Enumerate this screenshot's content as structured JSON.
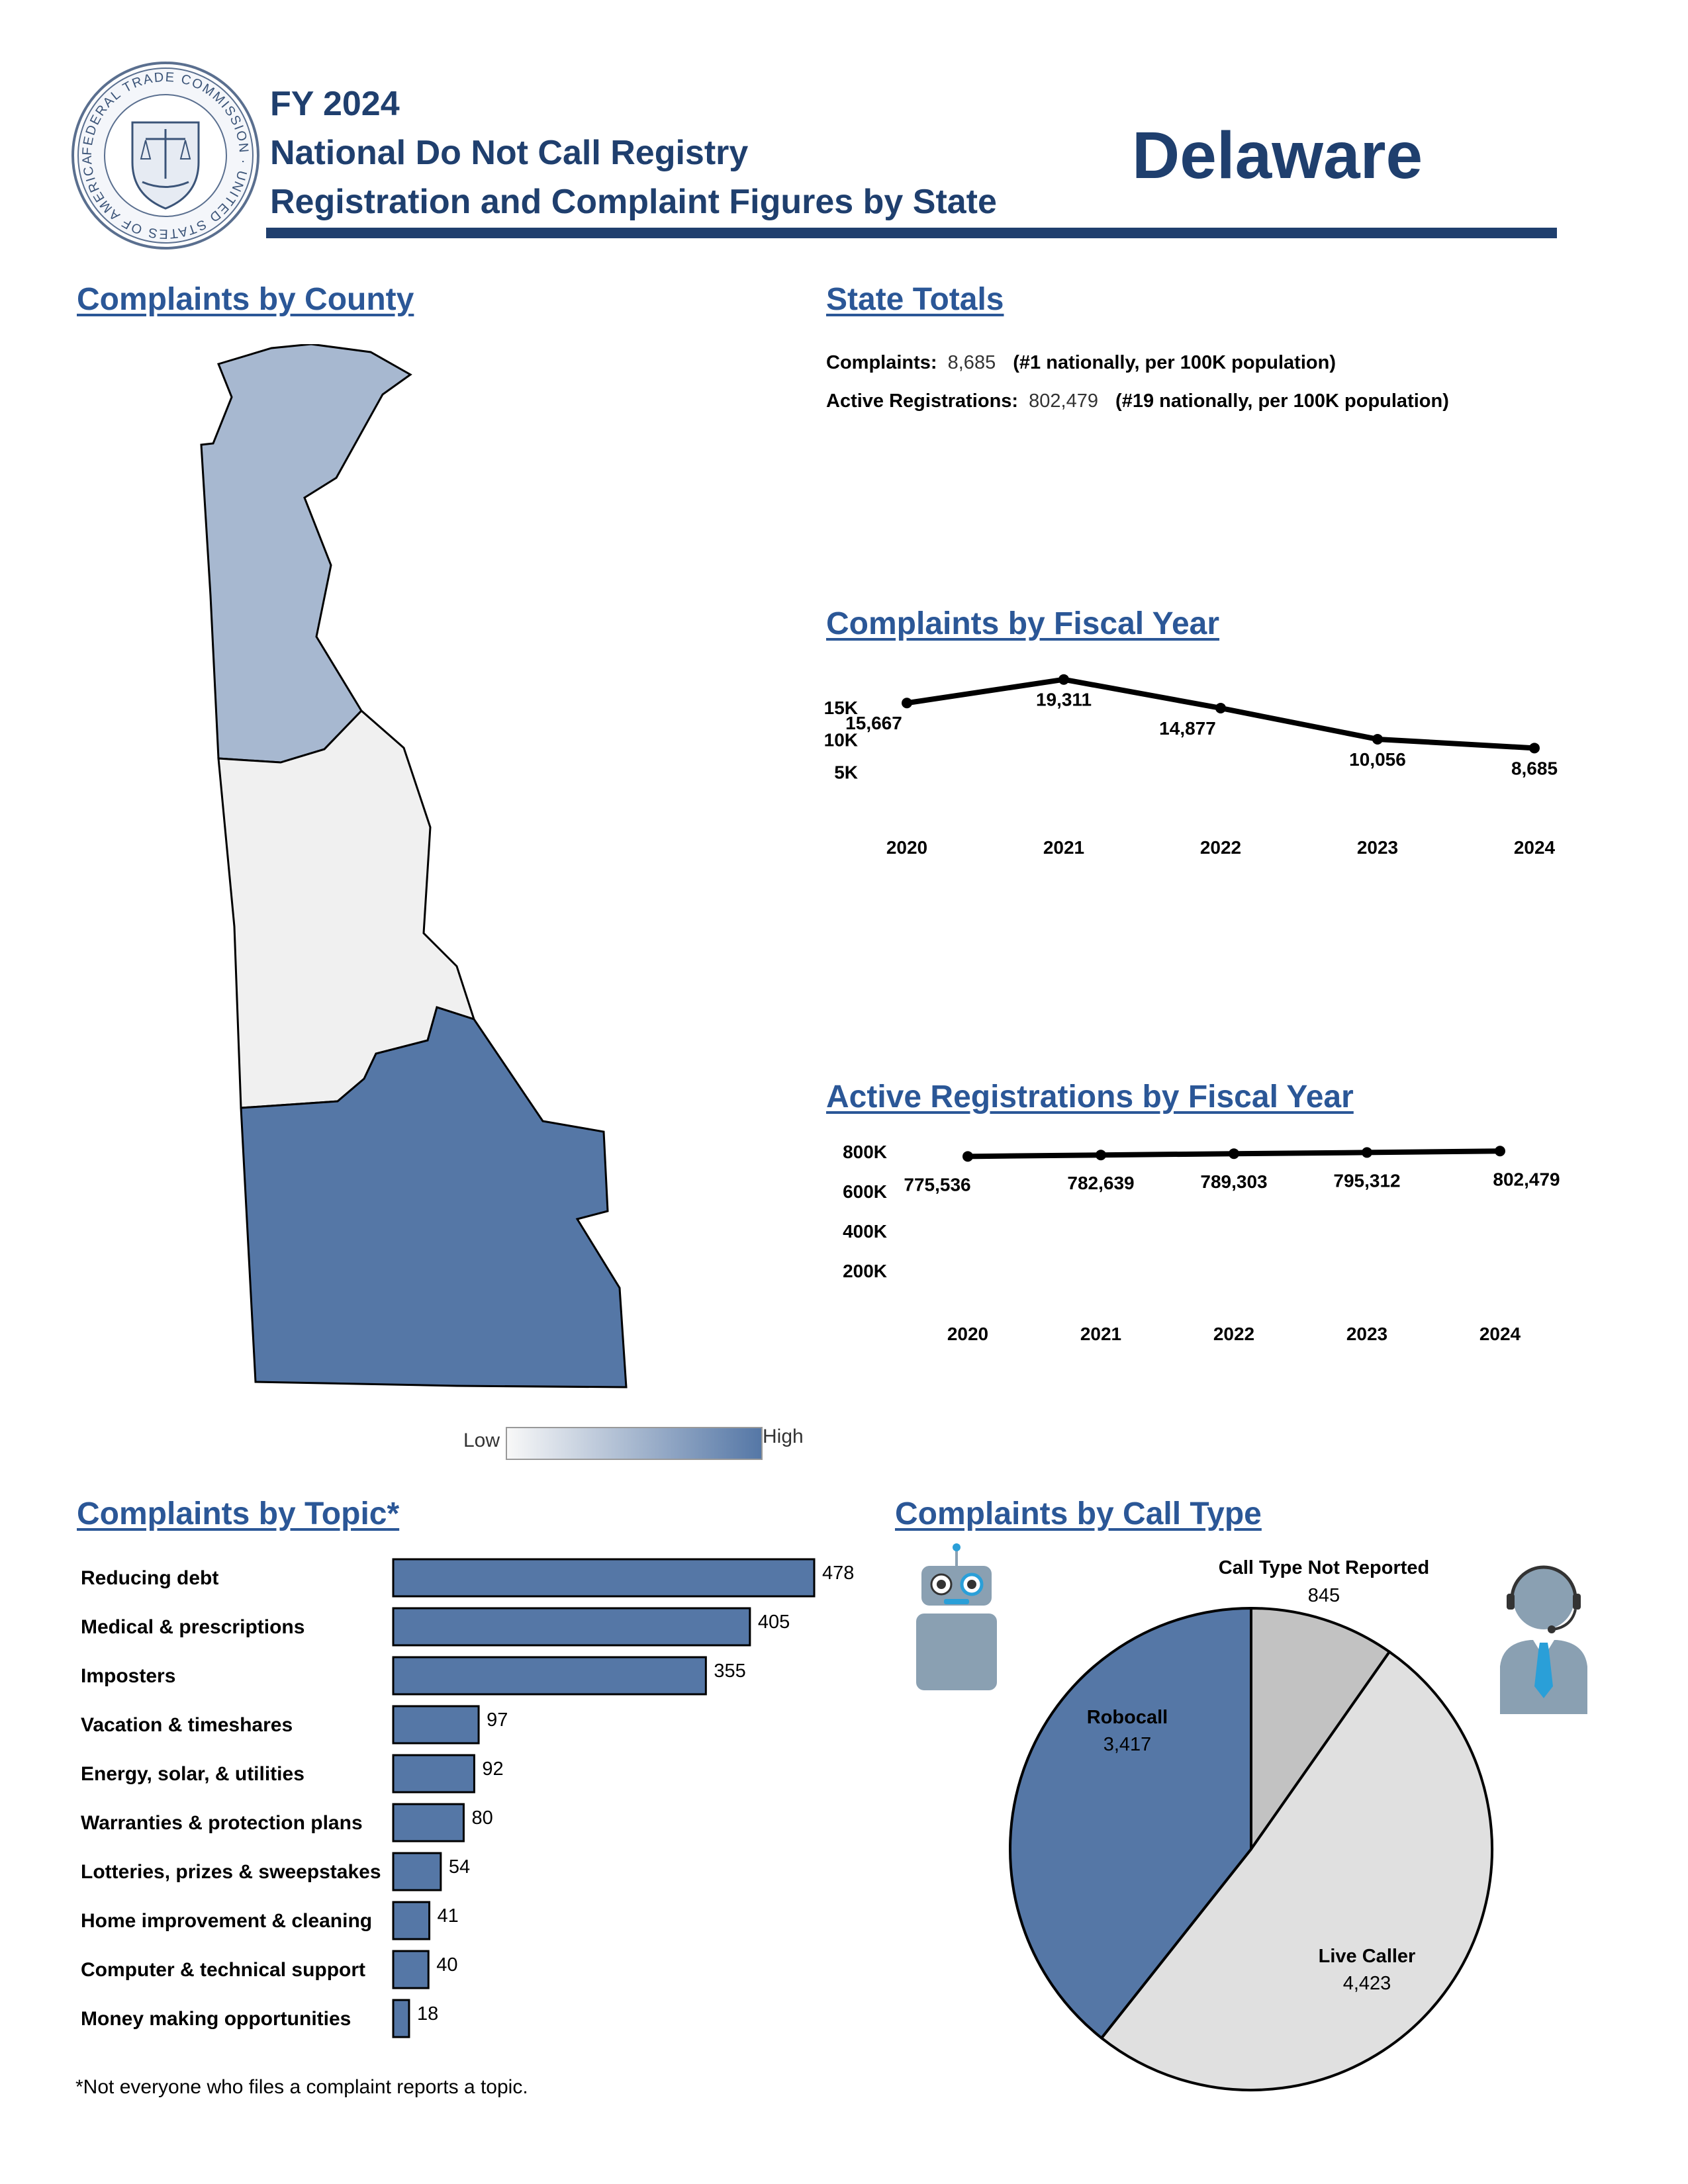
{
  "header": {
    "line1": "FY 2024",
    "line2": "National Do Not Call Registry",
    "line3": "Registration and Complaint Figures by State",
    "state": "Delaware",
    "seal_text": "FEDERAL TRADE COMMISSION · UNITED STATES OF AMERICA · MCMXV"
  },
  "colors": {
    "navy": "#1f3f6e",
    "title_blue": "#2b5797",
    "bar_blue": "#5577a6",
    "county_high": "#5577a6",
    "county_mid": "#a7b8d0",
    "county_low": "#f0f0f0",
    "pie_robocall": "#5577a6",
    "pie_live": "#e0e0e0",
    "pie_not_reported": "#c2c2c2"
  },
  "county_map": {
    "title": "Complaints by County",
    "legend_low": "Low",
    "legend_high": "High"
  },
  "state_totals": {
    "title": "State Totals",
    "complaints_label": "Complaints:",
    "complaints_value": "8,685",
    "complaints_rank": "(#1 nationally, per 100K population)",
    "registrations_label": "Active Registrations:",
    "registrations_value": "802,479",
    "registrations_rank": "(#19 nationally, per 100K population)"
  },
  "chart_data": [
    {
      "id": "complaints_by_year",
      "type": "line",
      "title": "Complaints by Fiscal Year",
      "x": [
        "2020",
        "2021",
        "2022",
        "2023",
        "2024"
      ],
      "values": [
        15667,
        19311,
        14877,
        10056,
        8685
      ],
      "value_labels": [
        "15,667",
        "19,311",
        "14,877",
        "10,056",
        "8,685"
      ],
      "y_ticks": [
        "5K",
        "10K",
        "15K"
      ],
      "ylim": [
        0,
        20000
      ]
    },
    {
      "id": "registrations_by_year",
      "type": "line",
      "title": "Active Registrations by Fiscal Year",
      "x": [
        "2020",
        "2021",
        "2022",
        "2023",
        "2024"
      ],
      "values": [
        775536,
        782639,
        789303,
        795312,
        802479
      ],
      "value_labels": [
        "775,536",
        "782,639",
        "789,303",
        "795,312",
        "802,479"
      ],
      "y_ticks": [
        "200K",
        "400K",
        "600K",
        "800K"
      ],
      "ylim": [
        0,
        800000
      ]
    },
    {
      "id": "complaints_by_topic",
      "type": "bar",
      "title": "Complaints by Topic",
      "title_suffix": "*",
      "categories": [
        "Reducing debt",
        "Medical & prescriptions",
        "Imposters",
        "Vacation & timeshares",
        "Energy, solar, & utilities",
        "Warranties & protection plans",
        "Lotteries, prizes & sweepstakes",
        "Home improvement & cleaning",
        "Computer & technical support",
        "Money making opportunities"
      ],
      "values": [
        478,
        405,
        355,
        97,
        92,
        80,
        54,
        41,
        40,
        18
      ],
      "footnote": "*Not everyone who files a complaint reports a topic."
    },
    {
      "id": "complaints_by_call_type",
      "type": "pie",
      "title": "Complaints by Call Type",
      "slices": [
        {
          "label": "Call Type Not Reported",
          "value": 845,
          "value_label": "845"
        },
        {
          "label": "Live Caller",
          "value": 4423,
          "value_label": "4,423"
        },
        {
          "label": "Robocall",
          "value": 3417,
          "value_label": "3,417"
        }
      ]
    }
  ]
}
